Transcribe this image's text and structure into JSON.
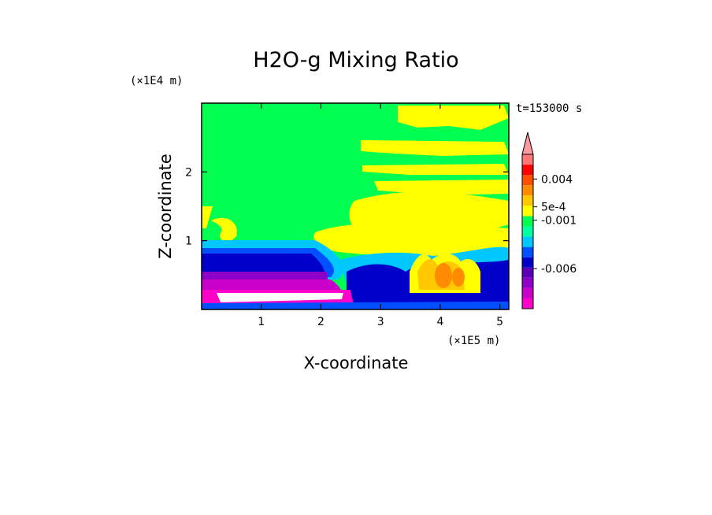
{
  "chart_data": {
    "type": "heatmap",
    "title": "H2O-g Mixing Ratio",
    "xlabel": "X-coordinate",
    "ylabel": "Z-coordinate",
    "x_unit": "(×1E5 m)",
    "y_unit": "(×1E4 m)",
    "time_label": "t=153000 s",
    "xlim": [
      0,
      5.15
    ],
    "ylim": [
      0,
      3.0
    ],
    "x_ticks": [
      1,
      2,
      3,
      4,
      5
    ],
    "y_ticks": [
      1,
      2
    ],
    "colorbar": {
      "tick_labels": [
        "0.004",
        "5e-4",
        "-0.001",
        "-0.006"
      ],
      "tick_values": [
        0.004,
        0.0005,
        -0.001,
        -0.006
      ],
      "levels_colors": [
        "#ff00c8",
        "#c800c8",
        "#8c00c8",
        "#5a00b4",
        "#0000c8",
        "#0050ff",
        "#00c8ff",
        "#00ffa0",
        "#00ff50",
        "#ffff00",
        "#ffc800",
        "#ff8c00",
        "#ff5000",
        "#ff0000",
        "#ff7878"
      ]
    },
    "regions": [
      {
        "name": "background",
        "color": "#00ff50"
      },
      {
        "name": "upper-moist-patches",
        "color": "#ffff00"
      },
      {
        "name": "convective-core",
        "color": "#ffc800"
      },
      {
        "name": "low-level-dry-band",
        "color": "#0000c8"
      },
      {
        "name": "surface-dry-layer",
        "color": "#c800c8"
      }
    ]
  }
}
